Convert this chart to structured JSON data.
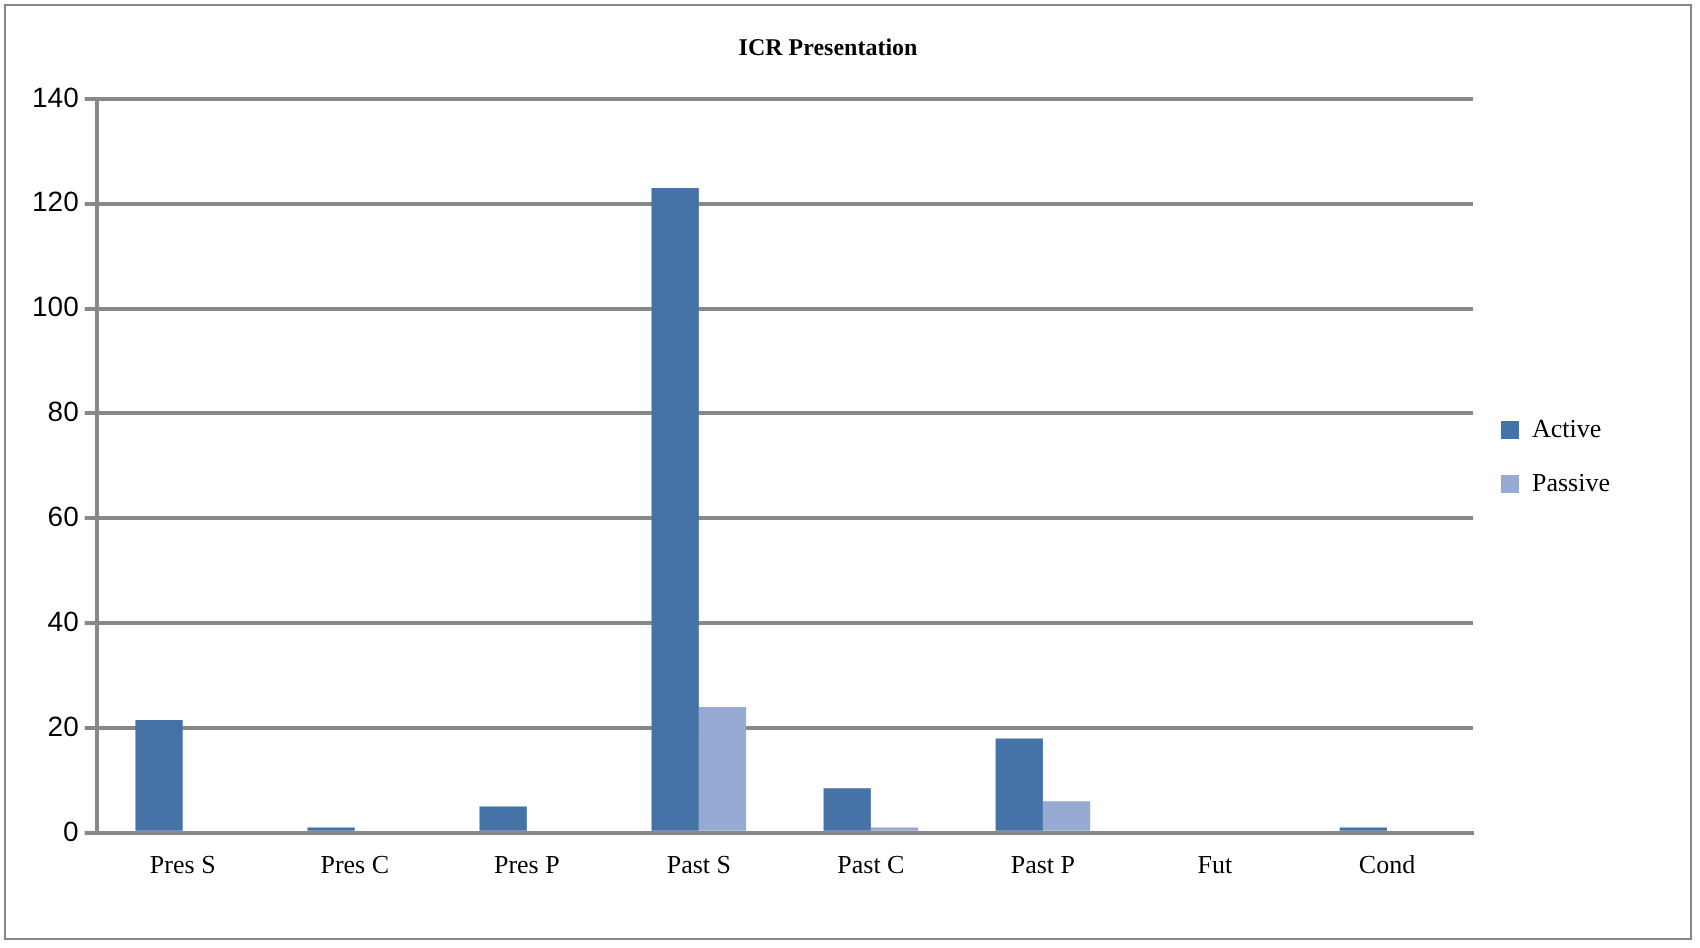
{
  "chart_data": {
    "type": "bar",
    "title": "ICR Presentation",
    "categories": [
      "Pres S",
      "Pres C",
      "Pres P",
      "Past S",
      "Past C",
      "Past P",
      "Fut",
      "Cond"
    ],
    "series": [
      {
        "name": "Active",
        "color": "#4572a7",
        "values": [
          21.5,
          1,
          5,
          123,
          8.5,
          18,
          0,
          1
        ]
      },
      {
        "name": "Passive",
        "color": "#96aad3",
        "values": [
          0,
          0,
          0,
          24,
          1,
          6,
          0,
          0
        ]
      }
    ],
    "ylim": [
      0,
      140
    ],
    "yticks": [
      0,
      20,
      40,
      60,
      80,
      100,
      120,
      140
    ],
    "grid": "y",
    "legend": "right"
  }
}
